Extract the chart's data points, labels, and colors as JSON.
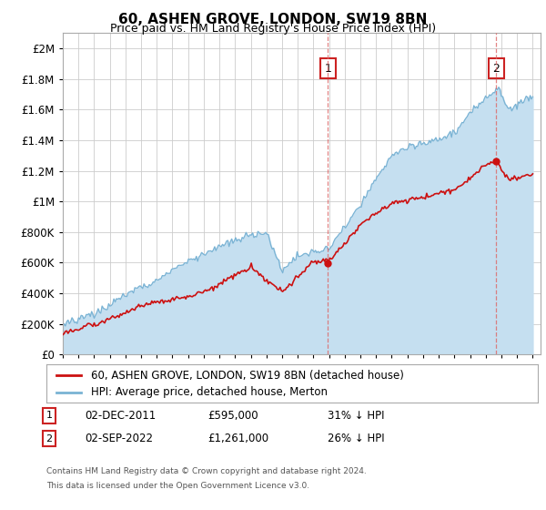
{
  "title": "60, ASHEN GROVE, LONDON, SW19 8BN",
  "subtitle": "Price paid vs. HM Land Registry's House Price Index (HPI)",
  "ytick_values": [
    0,
    200000,
    400000,
    600000,
    800000,
    1000000,
    1200000,
    1400000,
    1600000,
    1800000,
    2000000
  ],
  "ylim": [
    0,
    2100000
  ],
  "xlim_start": 1995.0,
  "xlim_end": 2025.5,
  "hpi_color": "#7ab3d4",
  "hpi_fill_color": "#c5dff0",
  "price_color": "#cc1111",
  "sale1_date": 2011.92,
  "sale1_price": 595000,
  "sale2_date": 2022.67,
  "sale2_price": 1261000,
  "legend_label1": "60, ASHEN GROVE, LONDON, SW19 8BN (detached house)",
  "legend_label2": "HPI: Average price, detached house, Merton",
  "annotation1_date": "02-DEC-2011",
  "annotation1_price": "£595,000",
  "annotation1_note": "31% ↓ HPI",
  "annotation2_date": "02-SEP-2022",
  "annotation2_price": "£1,261,000",
  "annotation2_note": "26% ↓ HPI",
  "footer1": "Contains HM Land Registry data © Crown copyright and database right 2024.",
  "footer2": "This data is licensed under the Open Government Licence v3.0."
}
